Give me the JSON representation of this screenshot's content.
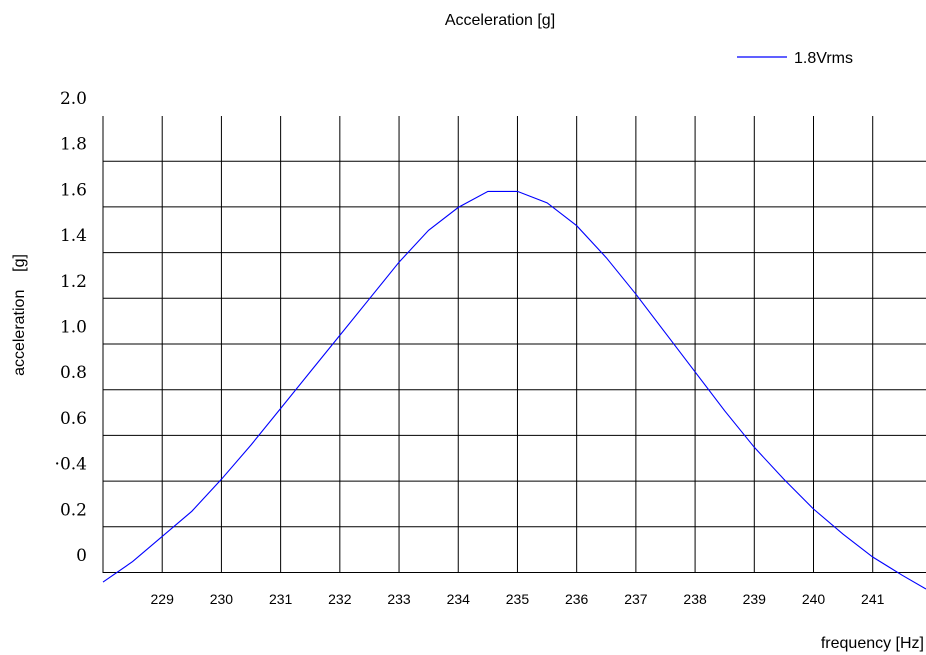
{
  "chart_data": {
    "type": "line",
    "title": "Acceleration [g]",
    "xlabel": "frequency [Hz]",
    "ylabel": "acceleration    [g]",
    "xlim": [
      228,
      241.9
    ],
    "ylim": [
      0,
      2.0
    ],
    "x_ticks": [
      229,
      230,
      231,
      232,
      233,
      234,
      235,
      236,
      237,
      238,
      239,
      240,
      241
    ],
    "x_tick_labels": [
      "229",
      "230",
      "231",
      "232",
      "233",
      "234",
      "235",
      "236",
      "237",
      "238",
      "239",
      "240",
      "241"
    ],
    "y_ticks": [
      0,
      0.2,
      0.4,
      0.6,
      0.8,
      1.0,
      1.2,
      1.4,
      1.6,
      1.8,
      2.0
    ],
    "y_tick_labels": [
      "0",
      "0.2",
      "·0.4",
      "0.6",
      "0.8",
      "1.0",
      "1.2",
      "1.4",
      "1.6",
      "1.8",
      "2.0"
    ],
    "grid": true,
    "legend": "top-right",
    "series": [
      {
        "name": "1.8Vrms",
        "color": "#0000ff",
        "x": [
          228.0,
          228.5,
          229.0,
          229.5,
          230.0,
          230.5,
          231.0,
          231.5,
          232.0,
          232.5,
          233.0,
          233.5,
          234.0,
          234.5,
          235.0,
          235.5,
          236.0,
          236.5,
          237.0,
          237.5,
          238.0,
          238.5,
          239.0,
          239.5,
          240.0,
          240.5,
          241.0,
          241.5,
          241.9
        ],
        "y": [
          -0.04,
          0.05,
          0.16,
          0.27,
          0.41,
          0.56,
          0.72,
          0.88,
          1.04,
          1.2,
          1.36,
          1.5,
          1.6,
          1.67,
          1.67,
          1.62,
          1.52,
          1.38,
          1.22,
          1.05,
          0.88,
          0.71,
          0.55,
          0.41,
          0.28,
          0.17,
          0.07,
          -0.01,
          -0.07
        ]
      }
    ]
  }
}
